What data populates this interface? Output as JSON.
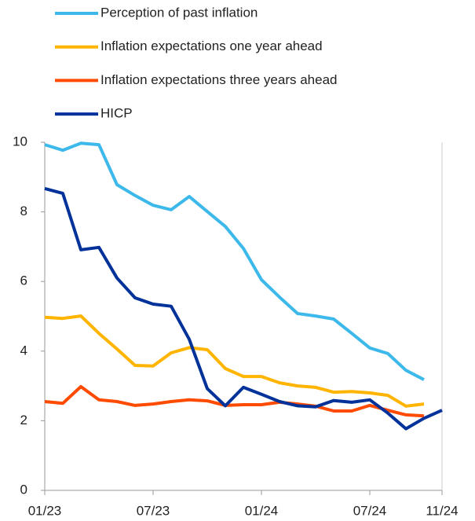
{
  "chart_data": {
    "type": "line",
    "categories": [
      "01/23",
      null,
      null,
      null,
      null,
      null,
      "07/23",
      null,
      null,
      null,
      null,
      null,
      "01/24",
      null,
      null,
      null,
      null,
      null,
      "07/24",
      null,
      null,
      null,
      "11/24"
    ],
    "series": [
      {
        "name": "Perception of past inflation",
        "color": "#3cb9ea",
        "values": [
          9.93,
          9.77,
          9.97,
          9.93,
          8.78,
          8.47,
          8.19,
          8.06,
          8.44,
          8.01,
          7.58,
          6.95,
          6.05,
          5.55,
          5.08,
          5.01,
          4.92,
          4.51,
          4.09,
          3.93,
          3.45,
          3.18,
          null
        ]
      },
      {
        "name": "Inflation expectations one year ahead",
        "color": "#ffb400",
        "values": [
          4.97,
          4.94,
          5.01,
          4.51,
          4.06,
          3.59,
          3.57,
          3.95,
          4.1,
          4.04,
          3.5,
          3.27,
          3.27,
          3.09,
          3.0,
          2.96,
          2.82,
          2.84,
          2.8,
          2.73,
          2.42,
          2.48,
          null
        ]
      },
      {
        "name": "Inflation expectations three years ahead",
        "color": "#ff4b00",
        "values": [
          2.55,
          2.5,
          2.98,
          2.6,
          2.55,
          2.44,
          2.48,
          2.55,
          2.6,
          2.57,
          2.44,
          2.46,
          2.46,
          2.53,
          2.48,
          2.42,
          2.28,
          2.28,
          2.44,
          2.3,
          2.17,
          2.14,
          null
        ]
      },
      {
        "name": "HICP",
        "color": "#003299",
        "values": [
          8.67,
          8.53,
          6.91,
          6.98,
          6.1,
          5.53,
          5.35,
          5.29,
          4.34,
          2.92,
          2.43,
          2.96,
          2.76,
          2.55,
          2.43,
          2.4,
          2.58,
          2.53,
          2.6,
          2.22,
          1.77,
          2.07,
          2.3
        ]
      }
    ],
    "ylim": [
      0,
      10
    ],
    "yticks": [
      0,
      2,
      4,
      6,
      8,
      10
    ]
  }
}
